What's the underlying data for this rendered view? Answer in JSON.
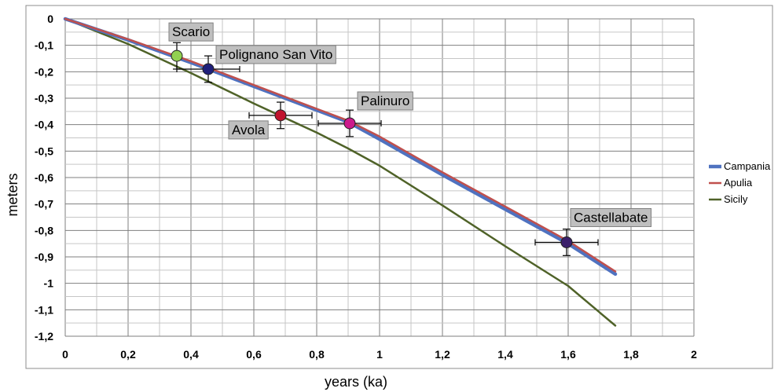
{
  "chart_data": {
    "type": "line",
    "xlabel": "years (ka)",
    "ylabel": "meters",
    "xlim": [
      0,
      2
    ],
    "ylim": [
      -1.2,
      0
    ],
    "x_ticks": [
      "0",
      "0,2",
      "0,4",
      "0,6",
      "0,8",
      "1",
      "1,2",
      "1,4",
      "1,6",
      "1,8",
      "2"
    ],
    "y_ticks": [
      "0",
      "-0,1",
      "-0,2",
      "-0,3",
      "-0,4",
      "-0,5",
      "-0,6",
      "-0,7",
      "-0,8",
      "-0,9",
      "-1",
      "-1,1",
      "-1,2"
    ],
    "grid": true,
    "legend_position": "right",
    "series": [
      {
        "name": "Campania",
        "color": "#4f72c0",
        "points": [
          [
            0,
            0
          ],
          [
            0.2,
            -0.08
          ],
          [
            0.4,
            -0.165
          ],
          [
            0.6,
            -0.255
          ],
          [
            0.8,
            -0.345
          ],
          [
            0.9,
            -0.39
          ],
          [
            1.0,
            -0.455
          ],
          [
            1.2,
            -0.59
          ],
          [
            1.4,
            -0.72
          ],
          [
            1.6,
            -0.85
          ],
          [
            1.75,
            -0.965
          ]
        ]
      },
      {
        "name": "Apulia",
        "color": "#c0504d",
        "points": [
          [
            0,
            0
          ],
          [
            0.2,
            -0.077
          ],
          [
            0.4,
            -0.16
          ],
          [
            0.6,
            -0.25
          ],
          [
            0.8,
            -0.34
          ],
          [
            0.9,
            -0.385
          ],
          [
            1.0,
            -0.445
          ],
          [
            1.2,
            -0.58
          ],
          [
            1.4,
            -0.71
          ],
          [
            1.6,
            -0.84
          ],
          [
            1.75,
            -0.955
          ]
        ]
      },
      {
        "name": "Sicily",
        "color": "#4f6228",
        "points": [
          [
            0,
            0
          ],
          [
            0.2,
            -0.095
          ],
          [
            0.4,
            -0.205
          ],
          [
            0.6,
            -0.32
          ],
          [
            0.8,
            -0.43
          ],
          [
            0.9,
            -0.49
          ],
          [
            1.0,
            -0.555
          ],
          [
            1.2,
            -0.705
          ],
          [
            1.4,
            -0.86
          ],
          [
            1.6,
            -1.01
          ],
          [
            1.75,
            -1.16
          ]
        ]
      }
    ],
    "sites": [
      {
        "label": "Scario",
        "x": 0.355,
        "y": -0.14,
        "x_err": 0,
        "y_err": 0.05,
        "color": "#92d050"
      },
      {
        "label": "Polignano San Vito",
        "x": 0.455,
        "y": -0.19,
        "x_err": 0.1,
        "y_err": 0.05,
        "color": "#1f1f7a"
      },
      {
        "label": "Avola",
        "x": 0.685,
        "y": -0.365,
        "x_err": 0.1,
        "y_err": 0.05,
        "color": "#c0142c"
      },
      {
        "label": "Palinuro",
        "x": 0.905,
        "y": -0.395,
        "x_err": 0.1,
        "y_err": 0.05,
        "color": "#cc1a8c"
      },
      {
        "label": "Castellabate",
        "x": 1.595,
        "y": -0.845,
        "x_err": 0.1,
        "y_err": 0.05,
        "color": "#3b1f6b"
      }
    ]
  }
}
